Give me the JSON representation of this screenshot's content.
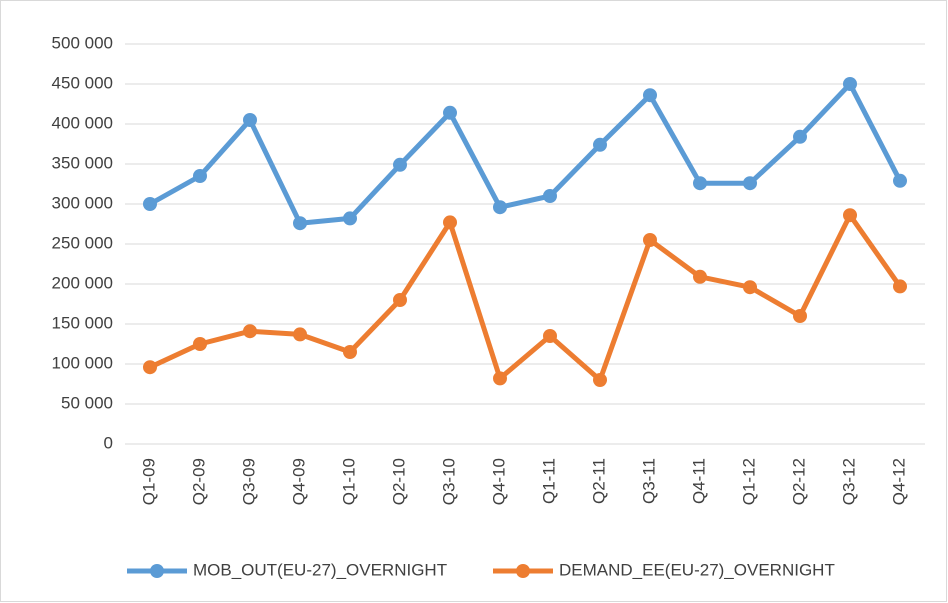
{
  "chart_data": {
    "type": "line",
    "categories": [
      "Q1-09",
      "Q2-09",
      "Q3-09",
      "Q4-09",
      "Q1-10",
      "Q2-10",
      "Q3-10",
      "Q4-10",
      "Q1-11",
      "Q2-11",
      "Q3-11",
      "Q4-11",
      "Q1-12",
      "Q2-12",
      "Q3-12",
      "Q4-12"
    ],
    "series": [
      {
        "name": "MOB_OUT(EU-27)_OVERNIGHT",
        "color": "#5b9bd5",
        "values": [
          300000,
          335000,
          405000,
          276000,
          282000,
          349000,
          414000,
          296000,
          310000,
          374000,
          436000,
          326000,
          326000,
          384000,
          450000,
          329000
        ]
      },
      {
        "name": "DEMAND_EE(EU-27)_OVERNIGHT",
        "color": "#ed7d31",
        "values": [
          96000,
          125000,
          141000,
          137000,
          115000,
          180000,
          277000,
          82000,
          135000,
          80000,
          255000,
          209000,
          196000,
          160000,
          286000,
          197000
        ]
      }
    ],
    "ylim": [
      0,
      500000
    ],
    "yticks": [
      0,
      {
        "value": 50000,
        "label": "50 000"
      },
      {
        "value": 100000,
        "label": "100 000"
      },
      {
        "value": 150000,
        "label": "150 000"
      },
      {
        "value": 200000,
        "label": "200 000"
      },
      {
        "value": 250000,
        "label": "250 000"
      },
      {
        "value": 300000,
        "label": "300 000"
      },
      {
        "value": 350000,
        "label": "350 000"
      },
      {
        "value": 400000,
        "label": "400 000"
      },
      {
        "value": 450000,
        "label": "450 000"
      },
      {
        "value": 500000,
        "label": "500 000"
      }
    ],
    "grid": true,
    "legend": "bottom"
  }
}
